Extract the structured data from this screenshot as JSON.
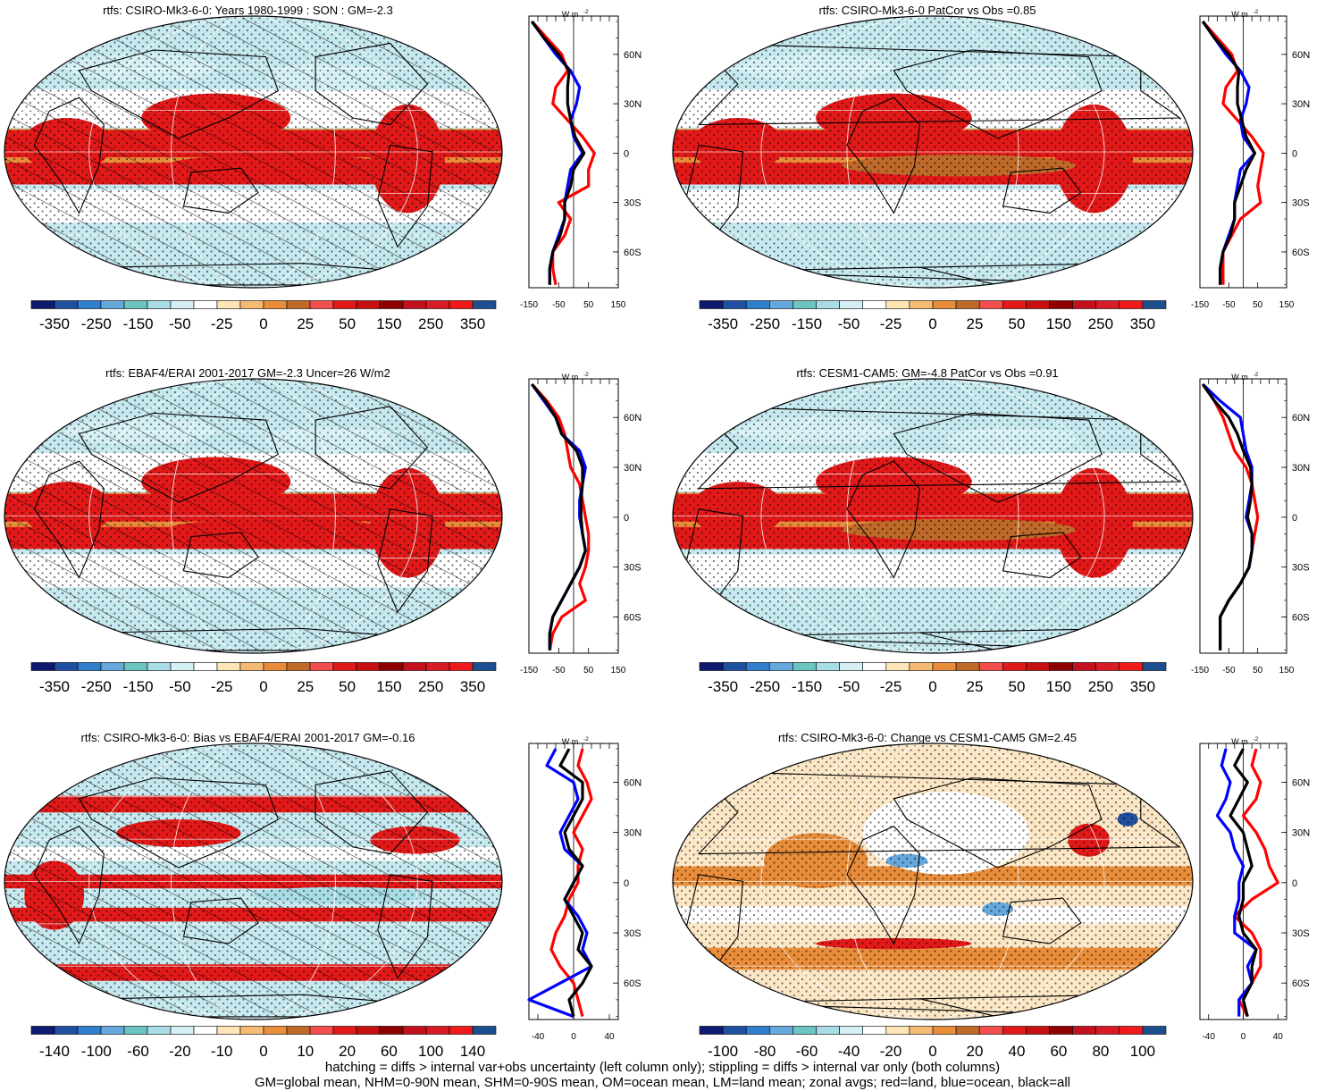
{
  "footer": {
    "line1": "hatching = diffs > internal var+obs uncertainty (left column only); stippling = diffs > internal var only (both columns)",
    "line2": "GM=global mean, NHM=0-90N mean, SHM=0-90S mean, OM=ocean mean, LM=land mean; zonal avgs; red=land, blue=ocean, black=all"
  },
  "chart_data": [
    {
      "type": "heatmap",
      "title": "rtfs: CSIRO-Mk3-6-0: Years 1980-1999 : SON : GM=-2.3",
      "hatching": true,
      "colorbar": {
        "colors": [
          "#0d1a6e",
          "#1f4fa0",
          "#2f7fcc",
          "#66a8dc",
          "#6cc4c0",
          "#a8dde6",
          "#d4f0f4",
          "#ffffff",
          "#fde5b8",
          "#f6bb72",
          "#e98d3a",
          "#c06a2a",
          "#f44d4d",
          "#e31919",
          "#c70f0f",
          "#8e0000",
          "#c4101d",
          "#d81b24",
          "#f01a1a",
          "#1c4f90"
        ],
        "labels": [
          "-350",
          "-250",
          "-150",
          "-50",
          "-25",
          "0",
          "25",
          "50",
          "150",
          "250",
          "350"
        ]
      },
      "zonal": {
        "xlim": [
          -150,
          150
        ],
        "xticks": [
          "-150",
          "-50",
          "50",
          "150"
        ],
        "unit": "W m",
        "unit_exp": "-2",
        "lat_labels": [
          "60N",
          "30N",
          "0",
          "30S",
          "60S"
        ],
        "lat": [
          80,
          70,
          60,
          50,
          40,
          30,
          20,
          10,
          0,
          -10,
          -20,
          -30,
          -40,
          -50,
          -60,
          -70,
          -80
        ],
        "series": [
          {
            "name": "land",
            "color": "#ff0000",
            "values": [
              -140,
              -90,
              -40,
              -20,
              -60,
              -70,
              -20,
              30,
              70,
              50,
              50,
              -50,
              -10,
              -30,
              -70,
              -70,
              -60
            ]
          },
          {
            "name": "ocean",
            "color": "#0000ff",
            "values": [
              -140,
              -100,
              -60,
              -10,
              20,
              10,
              -10,
              0,
              30,
              -10,
              -20,
              -30,
              -30,
              -50,
              -70,
              -80,
              -80
            ]
          },
          {
            "name": "all",
            "color": "#000000",
            "values": [
              -140,
              -100,
              -50,
              -15,
              -20,
              -20,
              -10,
              5,
              35,
              0,
              -10,
              -30,
              -30,
              -45,
              -70,
              -80,
              -80
            ]
          }
        ]
      }
    },
    {
      "type": "heatmap",
      "title": "rtfs: CSIRO-Mk3-6-0 PatCor vs Obs =0.85",
      "hatching": false,
      "colorbar": {
        "colors": [
          "#0d1a6e",
          "#1f4fa0",
          "#2f7fcc",
          "#66a8dc",
          "#6cc4c0",
          "#a8dde6",
          "#d4f0f4",
          "#ffffff",
          "#fde5b8",
          "#f6bb72",
          "#e98d3a",
          "#c06a2a",
          "#f44d4d",
          "#e31919",
          "#c70f0f",
          "#8e0000",
          "#c4101d",
          "#d81b24",
          "#f01a1a",
          "#1c4f90"
        ],
        "labels": [
          "-350",
          "-250",
          "-150",
          "-50",
          "-25",
          "0",
          "25",
          "50",
          "150",
          "250",
          "350"
        ]
      },
      "zonal": {
        "xlim": [
          -150,
          150
        ],
        "xticks": [
          "-150",
          "-50",
          "50",
          "150"
        ],
        "unit": "W m",
        "unit_exp": "-2",
        "lat_labels": [
          "60N",
          "30N",
          "0",
          "30S",
          "60S"
        ],
        "lat": [
          80,
          70,
          60,
          50,
          40,
          30,
          20,
          10,
          0,
          -10,
          -20,
          -30,
          -40,
          -50,
          -60,
          -70,
          -80
        ],
        "series": [
          {
            "name": "land",
            "color": "#ff0000",
            "values": [
              -140,
              -90,
              -40,
              -20,
              -60,
              -70,
              -20,
              30,
              70,
              60,
              50,
              60,
              -10,
              -40,
              -70,
              -70,
              -70
            ]
          },
          {
            "name": "ocean",
            "color": "#0000ff",
            "values": [
              -140,
              -100,
              -60,
              -10,
              20,
              10,
              -10,
              0,
              40,
              -10,
              -20,
              -30,
              -30,
              -50,
              -70,
              -80,
              -80
            ]
          },
          {
            "name": "all",
            "color": "#000000",
            "values": [
              -140,
              -100,
              -50,
              -15,
              -20,
              -20,
              -5,
              10,
              40,
              10,
              -10,
              -30,
              -30,
              -45,
              -70,
              -80,
              -80
            ]
          }
        ]
      }
    },
    {
      "type": "heatmap",
      "title": "rtfs: EBAF4/ERAI 2001-2017 GM=-2.3 Uncer=26 W/m2",
      "hatching": true,
      "colorbar": {
        "colors": [
          "#0d1a6e",
          "#1f4fa0",
          "#2f7fcc",
          "#66a8dc",
          "#6cc4c0",
          "#a8dde6",
          "#d4f0f4",
          "#ffffff",
          "#fde5b8",
          "#f6bb72",
          "#e98d3a",
          "#c06a2a",
          "#f44d4d",
          "#e31919",
          "#c70f0f",
          "#8e0000",
          "#c4101d",
          "#d81b24",
          "#f01a1a",
          "#1c4f90"
        ],
        "labels": [
          "-350",
          "-250",
          "-150",
          "-50",
          "-25",
          "0",
          "25",
          "50",
          "150",
          "250",
          "350"
        ]
      },
      "zonal": {
        "xlim": [
          -150,
          150
        ],
        "xticks": [
          "-150",
          "-50",
          "50",
          "150"
        ],
        "unit": "W m",
        "unit_exp": "-2",
        "lat_labels": [
          "60N",
          "30N",
          "0",
          "30S",
          "60S"
        ],
        "lat": [
          80,
          70,
          60,
          50,
          40,
          30,
          20,
          10,
          0,
          -10,
          -20,
          -30,
          -40,
          -50,
          -60,
          -70,
          -80
        ],
        "series": [
          {
            "name": "land",
            "color": "#ff0000",
            "values": [
              -140,
              -90,
              -50,
              -30,
              -20,
              -10,
              20,
              30,
              40,
              50,
              50,
              40,
              20,
              40,
              -40,
              -70,
              -80
            ]
          },
          {
            "name": "ocean",
            "color": "#0000ff",
            "values": [
              -140,
              -100,
              -60,
              -40,
              20,
              40,
              30,
              20,
              20,
              30,
              40,
              20,
              -10,
              -40,
              -70,
              -80,
              -80
            ]
          },
          {
            "name": "all",
            "color": "#000000",
            "values": [
              -140,
              -95,
              -60,
              -40,
              10,
              30,
              30,
              25,
              25,
              30,
              40,
              20,
              -10,
              -40,
              -70,
              -80,
              -80
            ]
          }
        ]
      }
    },
    {
      "type": "heatmap",
      "title": "rtfs: CESM1-CAM5: GM=-4.8 PatCor vs Obs =0.91",
      "hatching": false,
      "colorbar": {
        "colors": [
          "#0d1a6e",
          "#1f4fa0",
          "#2f7fcc",
          "#66a8dc",
          "#6cc4c0",
          "#a8dde6",
          "#d4f0f4",
          "#ffffff",
          "#fde5b8",
          "#f6bb72",
          "#e98d3a",
          "#c06a2a",
          "#f44d4d",
          "#e31919",
          "#c70f0f",
          "#8e0000",
          "#c4101d",
          "#d81b24",
          "#f01a1a",
          "#1c4f90"
        ],
        "labels": [
          "-350",
          "-250",
          "-150",
          "-50",
          "-25",
          "0",
          "25",
          "50",
          "150",
          "250",
          "350"
        ]
      },
      "zonal": {
        "xlim": [
          -150,
          150
        ],
        "xticks": [
          "-150",
          "-50",
          "50",
          "150"
        ],
        "unit": "W m",
        "unit_exp": "-2",
        "lat_labels": [
          "60N",
          "30N",
          "0",
          "30S",
          "60S"
        ],
        "lat": [
          80,
          70,
          60,
          50,
          40,
          30,
          20,
          10,
          0,
          -10,
          -20,
          -30,
          -40,
          -50,
          -60,
          -70,
          -80
        ],
        "series": [
          {
            "name": "land",
            "color": "#ff0000",
            "values": [
              -140,
              -100,
              -70,
              -50,
              -30,
              10,
              30,
              40,
              50,
              40,
              30,
              20,
              -10,
              -50,
              -80,
              -80,
              -80
            ]
          },
          {
            "name": "ocean",
            "color": "#0000ff",
            "values": [
              -140,
              -80,
              -10,
              0,
              10,
              30,
              30,
              20,
              10,
              30,
              30,
              20,
              -10,
              -50,
              -80,
              -80,
              -80
            ]
          },
          {
            "name": "all",
            "color": "#000000",
            "values": [
              -140,
              -100,
              -50,
              -20,
              0,
              25,
              30,
              25,
              15,
              30,
              30,
              20,
              -10,
              -50,
              -80,
              -80,
              -80
            ]
          }
        ]
      }
    },
    {
      "type": "heatmap",
      "title": "rtfs: CSIRO-Mk3-6-0: Bias vs EBAF4/ERAI 2001-2017  GM=-0.16",
      "hatching": true,
      "colorbar": {
        "colors": [
          "#0d1a6e",
          "#1f4fa0",
          "#2f7fcc",
          "#66a8dc",
          "#6cc4c0",
          "#a8dde6",
          "#d4f0f4",
          "#ffffff",
          "#fde5b8",
          "#f6bb72",
          "#e98d3a",
          "#c06a2a",
          "#f44d4d",
          "#e31919",
          "#c70f0f",
          "#8e0000",
          "#c4101d",
          "#d81b24",
          "#f01a1a",
          "#1c4f90"
        ],
        "labels": [
          "-140",
          "-100",
          "-60",
          "-20",
          "-10",
          "0",
          "10",
          "20",
          "60",
          "100",
          "140"
        ]
      },
      "zonal": {
        "xlim": [
          -50,
          50
        ],
        "xticks": [
          "-40",
          "0",
          "40"
        ],
        "unit": "W m",
        "unit_exp": "-2",
        "lat_labels": [
          "60N",
          "30N",
          "0",
          "30S",
          "60S"
        ],
        "lat": [
          80,
          70,
          60,
          50,
          40,
          30,
          20,
          10,
          0,
          -10,
          -20,
          -30,
          -40,
          -50,
          -60,
          -70,
          -80
        ],
        "series": [
          {
            "name": "land",
            "color": "#ff0000",
            "values": [
              10,
              5,
              15,
              20,
              10,
              0,
              10,
              5,
              5,
              -5,
              -10,
              -20,
              -25,
              -15,
              0,
              5,
              10
            ]
          },
          {
            "name": "ocean",
            "color": "#0000ff",
            "values": [
              -20,
              -30,
              0,
              5,
              -5,
              -15,
              -10,
              10,
              0,
              -10,
              5,
              15,
              10,
              20,
              -15,
              -50,
              0
            ]
          },
          {
            "name": "all",
            "color": "#000000",
            "values": [
              -5,
              -15,
              10,
              10,
              0,
              -10,
              -5,
              10,
              0,
              -10,
              0,
              10,
              5,
              20,
              10,
              -5,
              0
            ]
          }
        ]
      }
    },
    {
      "type": "heatmap",
      "title": "rtfs: CSIRO-Mk3-6-0: Change vs CESM1-CAM5 GM=2.45",
      "hatching": false,
      "colorbar": {
        "colors": [
          "#0d1a6e",
          "#1f4fa0",
          "#2f7fcc",
          "#66a8dc",
          "#6cc4c0",
          "#a8dde6",
          "#d4f0f4",
          "#ffffff",
          "#fde5b8",
          "#f6bb72",
          "#e98d3a",
          "#c06a2a",
          "#f44d4d",
          "#e31919",
          "#c70f0f",
          "#8e0000",
          "#c4101d",
          "#d81b24",
          "#f01a1a",
          "#1c4f90"
        ],
        "labels": [
          "-100",
          "-80",
          "-60",
          "-40",
          "-20",
          "0",
          "20",
          "40",
          "60",
          "80",
          "100"
        ]
      },
      "zonal": {
        "xlim": [
          -50,
          50
        ],
        "xticks": [
          "-40",
          "0",
          "40"
        ],
        "unit": "W m",
        "unit_exp": "-2",
        "lat_labels": [
          "60N",
          "30N",
          "0",
          "30S",
          "60S"
        ],
        "lat": [
          80,
          70,
          60,
          50,
          40,
          30,
          20,
          10,
          0,
          -10,
          -20,
          -30,
          -40,
          -50,
          -60,
          -70,
          -80
        ],
        "series": [
          {
            "name": "land",
            "color": "#ff0000",
            "values": [
              15,
              10,
              20,
              15,
              0,
              15,
              25,
              30,
              40,
              10,
              -10,
              10,
              20,
              20,
              10,
              -5,
              5
            ]
          },
          {
            "name": "ocean",
            "color": "#0000ff",
            "values": [
              -20,
              -25,
              -15,
              -20,
              -30,
              -15,
              -10,
              0,
              -5,
              -5,
              -10,
              -10,
              15,
              5,
              10,
              -5,
              -5
            ]
          },
          {
            "name": "all",
            "color": "#000000",
            "values": [
              0,
              -10,
              5,
              -5,
              -15,
              0,
              5,
              10,
              0,
              0,
              -5,
              0,
              15,
              10,
              10,
              0,
              5
            ]
          }
        ]
      }
    }
  ]
}
